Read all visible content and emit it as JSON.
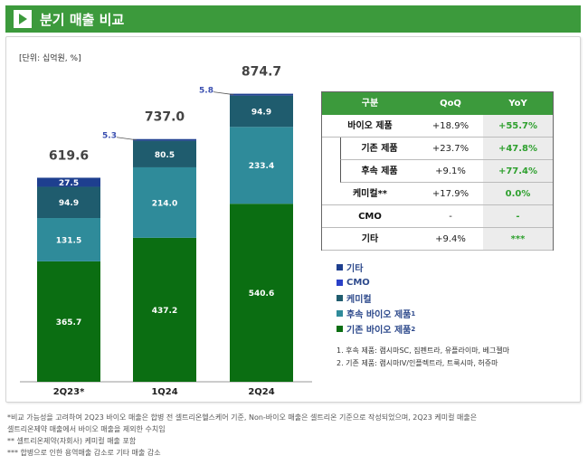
{
  "header": {
    "title": "분기 매출 비교",
    "icon": "chevron-right-icon"
  },
  "unit": "[단위: 십억원, %]",
  "chart_data": {
    "type": "bar",
    "stacked": true,
    "categories": [
      "2Q23*",
      "1Q24",
      "2Q24"
    ],
    "totals": [
      "619.6",
      "737.0",
      "874.7"
    ],
    "series": [
      {
        "name": "기존 바이오 제품",
        "values": [
          365.7,
          437.2,
          540.6
        ],
        "labels": [
          "365.7",
          "437.2",
          "540.6"
        ],
        "color": "#0b6e12"
      },
      {
        "name": "후속 바이오 제품",
        "values": [
          131.5,
          214.0,
          233.4
        ],
        "labels": [
          "131.5",
          "214.0",
          "233.4"
        ],
        "color": "#2f8b9a"
      },
      {
        "name": "케미컬",
        "values": [
          94.9,
          80.5,
          94.9
        ],
        "labels": [
          "94.9",
          "80.5",
          "94.9"
        ],
        "color": "#1f5c6e"
      },
      {
        "name": "CMO",
        "values": [
          0,
          0,
          0
        ],
        "labels": [
          "",
          "",
          ""
        ],
        "color": "#2a40c8"
      },
      {
        "name": "기타",
        "values": [
          27.5,
          5.3,
          5.8
        ],
        "labels": [
          "27.5",
          "5.3",
          "5.8"
        ],
        "color": "#1e3f8f"
      }
    ],
    "ylim": [
      0,
      1000
    ],
    "legend_position": "right"
  },
  "legend": {
    "items": [
      {
        "label": "기타",
        "sup": "",
        "color": "#1e3f8f"
      },
      {
        "label": "CMO",
        "sup": "",
        "color": "#2a40c8"
      },
      {
        "label": "케미컬",
        "sup": "",
        "color": "#1f5c6e"
      },
      {
        "label": "후속 바이오 제품",
        "sup": "1",
        "color": "#2f8b9a"
      },
      {
        "label": "기존 바이오 제품",
        "sup": "2",
        "color": "#0b6e12"
      }
    ]
  },
  "table": {
    "headers": [
      "구분",
      "QoQ",
      "YoY"
    ],
    "rows": [
      {
        "label": "바이오 제품",
        "qoq": "+18.9%",
        "yoy": "+55.7%",
        "indent": false
      },
      {
        "label": "기존 제품",
        "qoq": "+23.7%",
        "yoy": "+47.8%",
        "indent": true
      },
      {
        "label": "후속 제품",
        "qoq": "+9.1%",
        "yoy": "+77.4%",
        "indent": true
      },
      {
        "label": "케미컬**",
        "qoq": "+17.9%",
        "yoy": "0.0%",
        "indent": false
      },
      {
        "label": "CMO",
        "qoq": "-",
        "yoy": "-",
        "indent": false
      },
      {
        "label": "기타",
        "qoq": "+9.4%",
        "yoy": "***",
        "indent": false
      }
    ]
  },
  "notes": [
    "1. 후속 제품: 램시마SC, 짐펜트라, 유플라이마, 베그젤마",
    "2. 기존 제품: 램시마IV/인플렉트라, 트룩시마, 허쥬마"
  ],
  "footnotes": [
    "*비교 가능성을 고려하여 2Q23 바이오 매출은 합병 전 셀트리온헬스케어 기준, Non-바이오 매출은 셀트리온 기준으로 작성되었으며, 2Q23 케미컬 매출은",
    "셀트리온제약 매출에서 바이오 매출을 제외한 수치임",
    "** 셀트리온제약(자회사) 케미컬 매출 포함",
    "*** 합병으로 인한 용역매출 감소로 기타 매출 감소"
  ]
}
